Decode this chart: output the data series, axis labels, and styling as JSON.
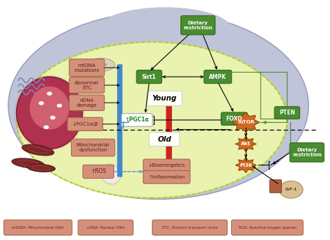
{
  "fig_width": 4.74,
  "fig_height": 3.44,
  "bg_color": "#ffffff",
  "cell_outer_color": "#b8bcd0",
  "cell_inner_color": "#e8f0b8",
  "legend_items": [
    "mtDNA: Mitochondrial DNA",
    "nDNA: Nuclear DNA",
    "ETC: Electron transport chain",
    "ROS: Reactive oxygen species"
  ],
  "legend_color": "#d4907a",
  "legend_text_color": "#6a2810",
  "green_fc": "#4a8c30",
  "green_ec": "#2a6010",
  "green_tc": "#ffffff",
  "orange_fc": "#d4907a",
  "orange_ec": "#a06040",
  "orange_tc": "#5a2010",
  "starburst_fc": "#d06820",
  "starburst_ec": "#904000",
  "starburst_tc": "#ffffff",
  "blue_bar": "#4488cc",
  "red_bar": "#cc2222",
  "dashed_line_y": 0.46
}
